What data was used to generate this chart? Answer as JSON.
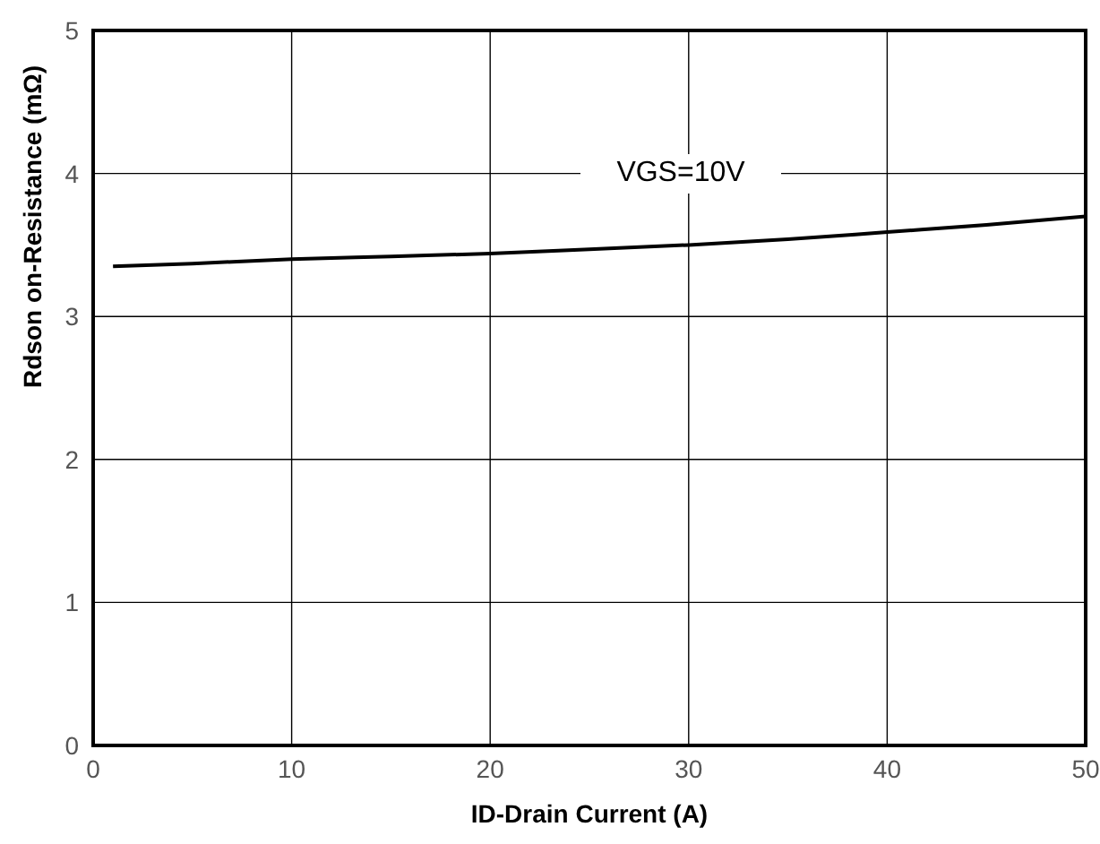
{
  "chart_data": {
    "type": "line",
    "xlabel": "ID-Drain Current (A)",
    "ylabel": "Rdson on-Resistance (mΩ)",
    "x": [
      1,
      5,
      10,
      15,
      20,
      25,
      30,
      35,
      40,
      45,
      50
    ],
    "series": [
      {
        "color": "#000000",
        "values": [
          3.35,
          3.37,
          3.4,
          3.42,
          3.44,
          3.47,
          3.5,
          3.54,
          3.59,
          3.64,
          3.7
        ]
      }
    ],
    "xlim": [
      0,
      50
    ],
    "xticks": [
      0,
      10,
      20,
      30,
      40,
      50
    ],
    "ylim": [
      0,
      5
    ],
    "yticks": [
      0,
      1,
      2,
      3,
      4,
      5
    ],
    "grid": true,
    "marker": "none",
    "line_style": "solid",
    "annotations": [
      "VGS=10V"
    ]
  }
}
